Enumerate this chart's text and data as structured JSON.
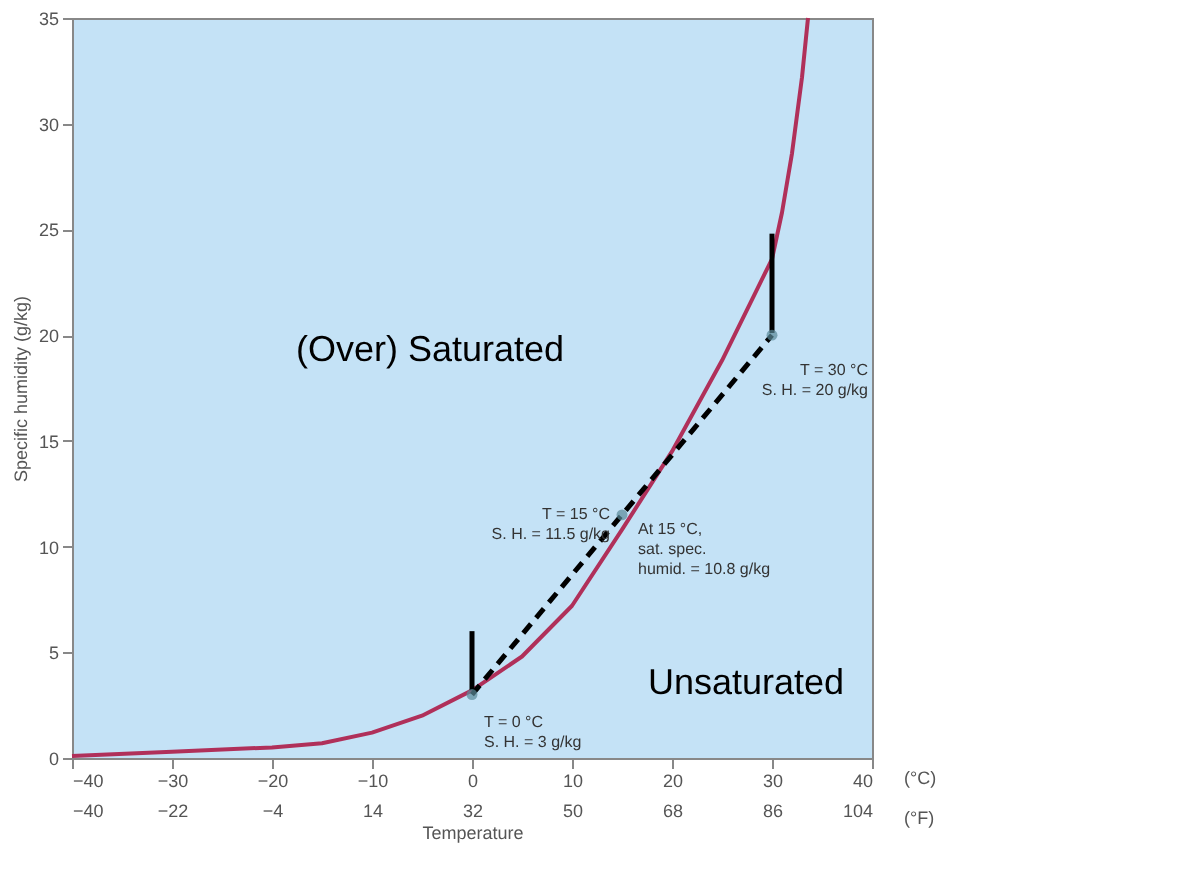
{
  "chart_data": {
    "type": "line",
    "xlabel": "Temperature",
    "ylabel": "Specific humidity (g/kg)",
    "xlim": [
      -40,
      40
    ],
    "xticks": [
      -40,
      -30,
      -20,
      -10,
      0,
      10,
      20,
      30,
      40
    ],
    "x2lim": [
      -40,
      104
    ],
    "x2ticks": [
      -40,
      -22,
      -4,
      14,
      32,
      50,
      68,
      86,
      104
    ],
    "x2label": "(°F)",
    "ylim": [
      0,
      35
    ],
    "yticks": [
      0,
      5,
      10,
      15,
      20,
      25,
      30,
      35
    ],
    "grid": false,
    "series": [
      {
        "color": "#b0305a",
        "x": [
          -40,
          -30,
          -20,
          -15,
          -10,
          -5,
          0,
          5,
          10,
          15,
          20,
          25,
          30,
          31,
          32,
          33,
          33.6
        ],
        "values": [
          0.1,
          0.3,
          0.5,
          0.7,
          1.2,
          2.0,
          3.2,
          4.8,
          7.2,
          10.8,
          14.5,
          18.8,
          23.6,
          25.8,
          28.6,
          32.2,
          35
        ]
      },
      {
        "type": "line",
        "color": "#000000",
        "line_style": "dashed",
        "x": [
          0,
          30
        ],
        "values": [
          3,
          20
        ]
      },
      {
        "type": "line",
        "color": "#000000",
        "x": [
          0,
          0
        ],
        "values": [
          3.2,
          6
        ]
      },
      {
        "type": "line",
        "color": "#000000",
        "x": [
          30,
          30
        ],
        "values": [
          20.1,
          24.8
        ]
      },
      {
        "type": "scatter",
        "color": "#5a8a9a",
        "x": [
          0,
          15,
          30
        ],
        "values": [
          3,
          11.5,
          20
        ]
      }
    ],
    "annotations": [
      {
        "text": "T = 0 °C\nS. H. = 3 g/kg",
        "x": 0,
        "y": 3
      },
      {
        "text": "T = 15 °C\nS. H. = 11.5 g/kg",
        "x": 15,
        "y": 11.5
      },
      {
        "text": "At 15 °C,\nsat. spec.\nhumid. = 10.8 g/kg",
        "x": 15,
        "y": 10.8
      },
      {
        "text": "T = 30 °C\nS. H. = 20 g/kg",
        "x": 30,
        "y": 20
      },
      "(Over) Saturated",
      "Unsaturated",
      "(°C)"
    ]
  }
}
